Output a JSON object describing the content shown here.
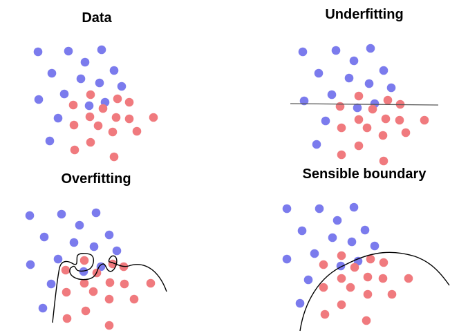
{
  "titles": {
    "data": "Data",
    "underfitting": "Underfitting",
    "overfitting": "Overfitting",
    "sensible": "Sensible boundary"
  },
  "colors": {
    "class_a": "#7b7bed",
    "class_b": "#f07a7e",
    "boundary": "#000000",
    "underfit_line": "#555555"
  },
  "panels": [
    {
      "id": "data",
      "boundary": "none",
      "class_a": [
        [
          55,
          75
        ],
        [
          99,
          74
        ],
        [
          147,
          72
        ],
        [
          123,
          90
        ],
        [
          75,
          106
        ],
        [
          165,
          102
        ],
        [
          117,
          114
        ],
        [
          144,
          120
        ],
        [
          176,
          125
        ],
        [
          93,
          136
        ],
        [
          56,
          144
        ],
        [
          152,
          148
        ],
        [
          129,
          153
        ],
        [
          84,
          171
        ],
        [
          72,
          204
        ]
      ],
      "class_b": [
        [
          131,
          137
        ],
        [
          170,
          143
        ],
        [
          106,
          152
        ],
        [
          187,
          148
        ],
        [
          149,
          157
        ],
        [
          168,
          170
        ],
        [
          130,
          169
        ],
        [
          187,
          172
        ],
        [
          222,
          170
        ],
        [
          107,
          181
        ],
        [
          142,
          182
        ],
        [
          198,
          190
        ],
        [
          163,
          191
        ],
        [
          131,
          206
        ],
        [
          108,
          217
        ],
        [
          165,
          227
        ]
      ]
    },
    {
      "id": "underfitting",
      "boundary": "horizontal",
      "class_a": [
        [
          438,
          75
        ],
        [
          486,
          73
        ],
        [
          536,
          70
        ],
        [
          512,
          88
        ],
        [
          461,
          106
        ],
        [
          555,
          102
        ],
        [
          505,
          113
        ],
        [
          534,
          121
        ],
        [
          566,
          127
        ],
        [
          480,
          137
        ],
        [
          440,
          146
        ],
        [
          542,
          150
        ],
        [
          517,
          156
        ],
        [
          471,
          175
        ],
        [
          458,
          209
        ]
      ],
      "class_b": [
        [
          519,
          139
        ],
        [
          561,
          145
        ],
        [
          492,
          154
        ],
        [
          579,
          151
        ],
        [
          539,
          158
        ],
        [
          558,
          172
        ],
        [
          519,
          173
        ],
        [
          578,
          174
        ],
        [
          614,
          174
        ],
        [
          494,
          185
        ],
        [
          531,
          185
        ],
        [
          587,
          192
        ],
        [
          554,
          196
        ],
        [
          519,
          211
        ],
        [
          494,
          224
        ],
        [
          555,
          233
        ]
      ]
    },
    {
      "id": "overfitting",
      "boundary": "wiggly",
      "class_a": [
        [
          43,
          312
        ],
        [
          89,
          310
        ],
        [
          139,
          308
        ],
        [
          115,
          326
        ],
        [
          64,
          343
        ],
        [
          158,
          340
        ],
        [
          107,
          351
        ],
        [
          136,
          357
        ],
        [
          169,
          363
        ],
        [
          84,
          375
        ],
        [
          44,
          383
        ],
        [
          146,
          386
        ],
        [
          121,
          393
        ],
        [
          74,
          411
        ],
        [
          62,
          446
        ]
      ],
      "class_b": [
        [
          122,
          377
        ],
        [
          163,
          382
        ],
        [
          95,
          391
        ],
        [
          179,
          386
        ],
        [
          140,
          395
        ],
        [
          159,
          409
        ],
        [
          122,
          410
        ],
        [
          180,
          411
        ],
        [
          218,
          410
        ],
        [
          96,
          423
        ],
        [
          135,
          422
        ],
        [
          194,
          433
        ],
        [
          158,
          433
        ],
        [
          124,
          450
        ],
        [
          97,
          461
        ],
        [
          158,
          471
        ]
      ]
    },
    {
      "id": "sensible",
      "boundary": "curve",
      "class_a": [
        [
          415,
          302
        ],
        [
          462,
          302
        ],
        [
          512,
          300
        ],
        [
          488,
          319
        ],
        [
          437,
          334
        ],
        [
          528,
          333
        ],
        [
          481,
          344
        ],
        [
          509,
          350
        ],
        [
          542,
          356
        ],
        [
          455,
          367
        ],
        [
          415,
          375
        ],
        [
          518,
          378
        ],
        [
          493,
          385
        ],
        [
          446,
          405
        ],
        [
          434,
          439
        ]
      ],
      "class_b": [
        [
          494,
          370
        ],
        [
          536,
          375
        ],
        [
          468,
          383
        ],
        [
          555,
          380
        ],
        [
          513,
          387
        ],
        [
          532,
          401
        ],
        [
          494,
          403
        ],
        [
          554,
          403
        ],
        [
          591,
          403
        ],
        [
          468,
          416
        ],
        [
          507,
          416
        ],
        [
          567,
          426
        ],
        [
          532,
          426
        ],
        [
          494,
          441
        ],
        [
          470,
          455
        ],
        [
          530,
          464
        ]
      ]
    }
  ]
}
